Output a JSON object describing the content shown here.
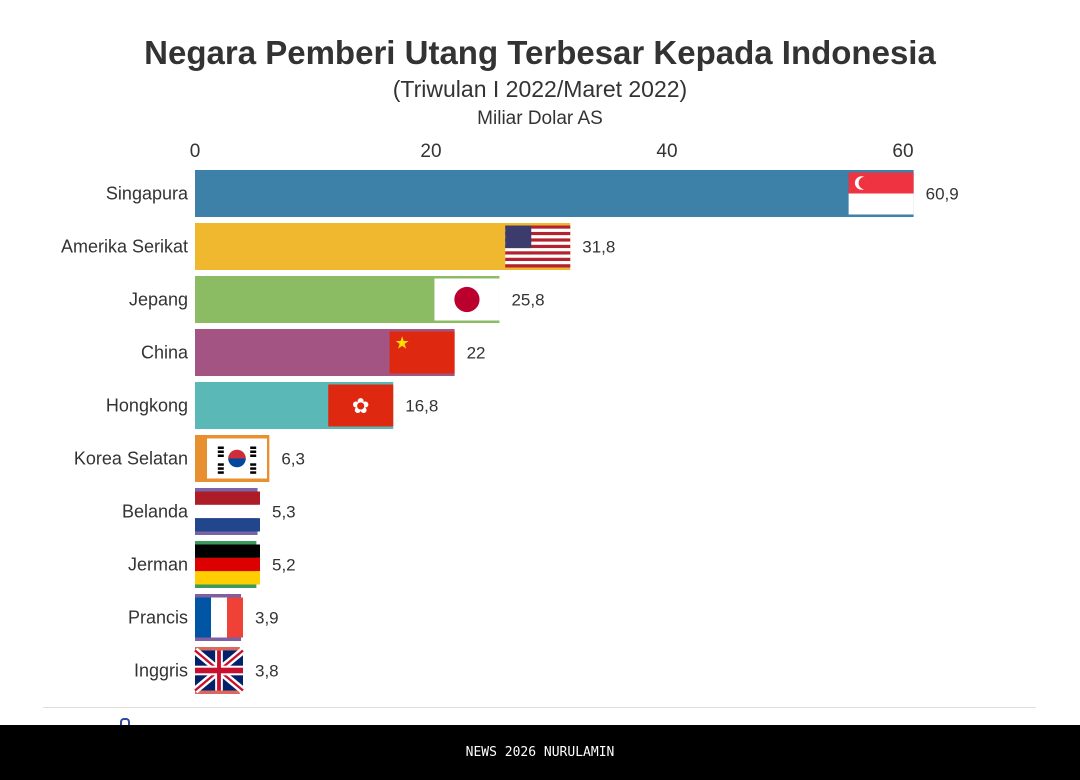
{
  "chart_data": {
    "type": "bar",
    "orientation": "horizontal",
    "title": "Negara Pemberi Utang Terbesar Kepada Indonesia",
    "subtitle": "(Triwulan I 2022/Maret 2022)",
    "xlabel": "Miliar Dolar AS",
    "xlim": [
      0,
      62
    ],
    "xticks": [
      "0",
      "20",
      "40",
      "60"
    ],
    "xtick_values": [
      0,
      20,
      40,
      60
    ],
    "grid": false,
    "categories": [
      "Singapura",
      "Amerika Serikat",
      "Jepang",
      "China",
      "Hongkong",
      "Korea Selatan",
      "Belanda",
      "Jerman",
      "Prancis",
      "Inggris"
    ],
    "values": [
      60.9,
      31.8,
      25.8,
      22,
      16.8,
      6.3,
      5.3,
      5.2,
      3.9,
      3.8
    ],
    "value_labels": [
      "60,9",
      "31,8",
      "25,8",
      "22",
      "16,8",
      "6,3",
      "5,3",
      "5,2",
      "3,9",
      "3,8"
    ],
    "colors": [
      "#3d80a8",
      "#f0b82e",
      "#8bbb62",
      "#a45482",
      "#5ab8b6",
      "#e8902f",
      "#7a64a5",
      "#3c9a5c",
      "#7f5f9e",
      "#d9695f"
    ],
    "flags": [
      "singapore-flag",
      "usa-flag",
      "japan-flag",
      "china-flag",
      "hongkong-flag",
      "south-korea-flag",
      "netherlands-flag",
      "germany-flag",
      "france-flag",
      "uk-flag"
    ]
  },
  "footer": {
    "text": "NEWS 2026 NURULAMIN"
  }
}
